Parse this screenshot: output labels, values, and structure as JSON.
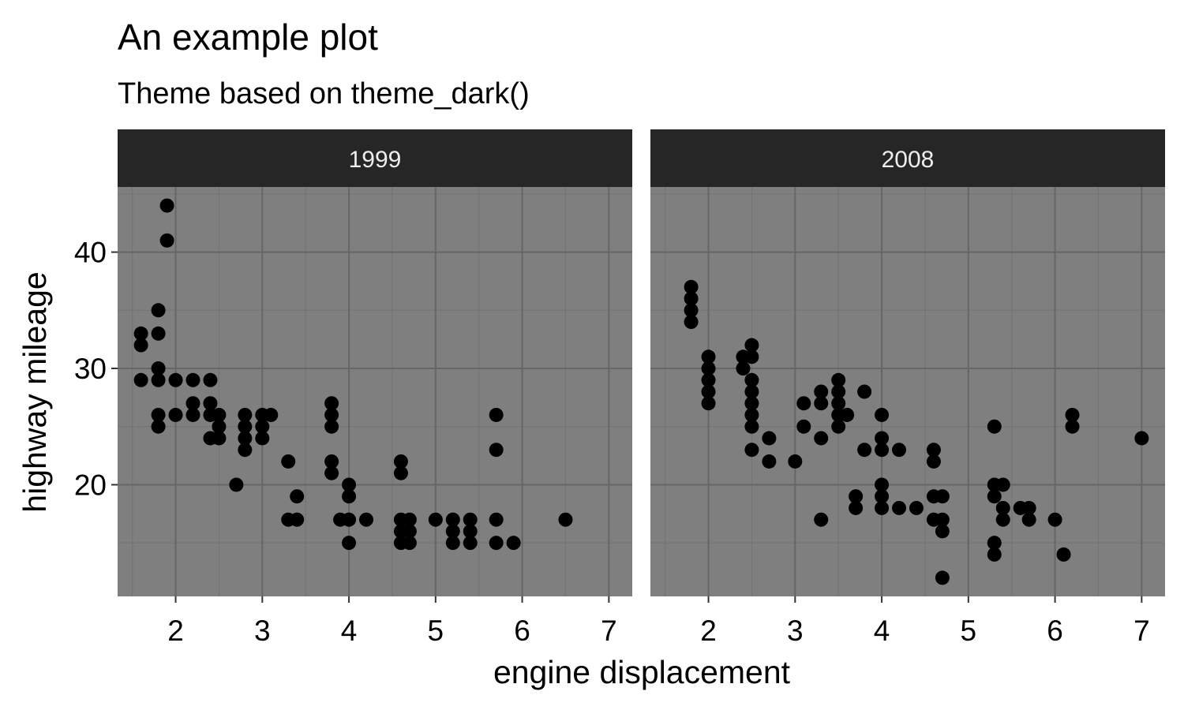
{
  "chart_data": {
    "type": "scatter",
    "title": "An example plot",
    "subtitle": "Theme based on theme_dark()",
    "xlabel": "engine displacement",
    "ylabel": "highway mileage",
    "xlim": [
      1.33,
      7.27
    ],
    "ylim": [
      10.4,
      45.6
    ],
    "x_ticks": [
      2,
      3,
      4,
      5,
      6,
      7
    ],
    "y_ticks": [
      20,
      30,
      40
    ],
    "x_tick_labels": [
      "2",
      "3",
      "4",
      "5",
      "6",
      "7"
    ],
    "y_tick_labels": [
      "20",
      "30",
      "40"
    ],
    "grid": true,
    "legend": "none",
    "panels": [
      {
        "label": "1999",
        "points": [
          [
            1.6,
            33
          ],
          [
            1.6,
            32
          ],
          [
            1.6,
            29
          ],
          [
            1.8,
            35
          ],
          [
            1.8,
            33
          ],
          [
            1.8,
            30
          ],
          [
            1.8,
            29
          ],
          [
            1.8,
            26
          ],
          [
            1.8,
            25
          ],
          [
            1.9,
            44
          ],
          [
            1.9,
            41
          ],
          [
            2.0,
            29
          ],
          [
            2.0,
            26
          ],
          [
            2.2,
            29
          ],
          [
            2.2,
            27
          ],
          [
            2.2,
            26
          ],
          [
            2.4,
            29
          ],
          [
            2.4,
            27
          ],
          [
            2.4,
            26
          ],
          [
            2.4,
            24
          ],
          [
            2.5,
            26
          ],
          [
            2.5,
            25
          ],
          [
            2.5,
            24
          ],
          [
            2.7,
            20
          ],
          [
            2.8,
            26
          ],
          [
            2.8,
            25
          ],
          [
            2.8,
            24
          ],
          [
            2.8,
            23
          ],
          [
            3.0,
            26
          ],
          [
            3.0,
            25
          ],
          [
            3.0,
            24
          ],
          [
            3.1,
            26
          ],
          [
            3.3,
            22
          ],
          [
            3.3,
            17
          ],
          [
            3.4,
            19
          ],
          [
            3.4,
            17
          ],
          [
            3.8,
            27
          ],
          [
            3.8,
            26
          ],
          [
            3.8,
            25
          ],
          [
            3.8,
            22
          ],
          [
            3.8,
            21
          ],
          [
            3.9,
            17
          ],
          [
            4.0,
            20
          ],
          [
            4.0,
            19
          ],
          [
            4.0,
            17
          ],
          [
            4.0,
            15
          ],
          [
            4.2,
            17
          ],
          [
            4.6,
            22
          ],
          [
            4.6,
            21
          ],
          [
            4.6,
            17
          ],
          [
            4.6,
            16
          ],
          [
            4.6,
            15
          ],
          [
            4.7,
            17
          ],
          [
            4.7,
            16
          ],
          [
            4.7,
            15
          ],
          [
            5.0,
            17
          ],
          [
            5.2,
            17
          ],
          [
            5.2,
            16
          ],
          [
            5.2,
            15
          ],
          [
            5.4,
            17
          ],
          [
            5.4,
            16
          ],
          [
            5.4,
            15
          ],
          [
            5.7,
            26
          ],
          [
            5.7,
            23
          ],
          [
            5.7,
            17
          ],
          [
            5.7,
            15
          ],
          [
            5.9,
            15
          ],
          [
            6.5,
            17
          ]
        ]
      },
      {
        "label": "2008",
        "points": [
          [
            1.8,
            37
          ],
          [
            1.8,
            36
          ],
          [
            1.8,
            35
          ],
          [
            1.8,
            34
          ],
          [
            2.0,
            31
          ],
          [
            2.0,
            30
          ],
          [
            2.0,
            29
          ],
          [
            2.0,
            28
          ],
          [
            2.0,
            27
          ],
          [
            2.4,
            31
          ],
          [
            2.4,
            30
          ],
          [
            2.5,
            32
          ],
          [
            2.5,
            31
          ],
          [
            2.5,
            29
          ],
          [
            2.5,
            28
          ],
          [
            2.5,
            27
          ],
          [
            2.5,
            26
          ],
          [
            2.5,
            25
          ],
          [
            2.5,
            23
          ],
          [
            2.7,
            24
          ],
          [
            2.7,
            22
          ],
          [
            3.0,
            22
          ],
          [
            3.1,
            27
          ],
          [
            3.1,
            25
          ],
          [
            3.3,
            28
          ],
          [
            3.3,
            27
          ],
          [
            3.3,
            24
          ],
          [
            3.3,
            17
          ],
          [
            3.5,
            29
          ],
          [
            3.5,
            28
          ],
          [
            3.5,
            27
          ],
          [
            3.5,
            26
          ],
          [
            3.5,
            25
          ],
          [
            3.6,
            26
          ],
          [
            3.7,
            19
          ],
          [
            3.7,
            18
          ],
          [
            3.8,
            28
          ],
          [
            3.8,
            23
          ],
          [
            4.0,
            26
          ],
          [
            4.0,
            24
          ],
          [
            4.0,
            23
          ],
          [
            4.0,
            20
          ],
          [
            4.0,
            19
          ],
          [
            4.0,
            18
          ],
          [
            4.2,
            23
          ],
          [
            4.2,
            18
          ],
          [
            4.4,
            18
          ],
          [
            4.6,
            23
          ],
          [
            4.6,
            22
          ],
          [
            4.6,
            19
          ],
          [
            4.6,
            17
          ],
          [
            4.7,
            19
          ],
          [
            4.7,
            17
          ],
          [
            4.7,
            16
          ],
          [
            4.7,
            12
          ],
          [
            5.3,
            25
          ],
          [
            5.3,
            20
          ],
          [
            5.3,
            19
          ],
          [
            5.3,
            15
          ],
          [
            5.3,
            14
          ],
          [
            5.4,
            20
          ],
          [
            5.4,
            18
          ],
          [
            5.4,
            17
          ],
          [
            5.6,
            18
          ],
          [
            5.7,
            18
          ],
          [
            5.7,
            17
          ],
          [
            6.0,
            17
          ],
          [
            6.1,
            14
          ],
          [
            6.2,
            26
          ],
          [
            6.2,
            25
          ],
          [
            7.0,
            24
          ]
        ]
      }
    ]
  },
  "colors": {
    "panel_background": "#7f7f7f",
    "strip_background": "#262626",
    "strip_text": "#eeeeee",
    "point": "#000000"
  }
}
